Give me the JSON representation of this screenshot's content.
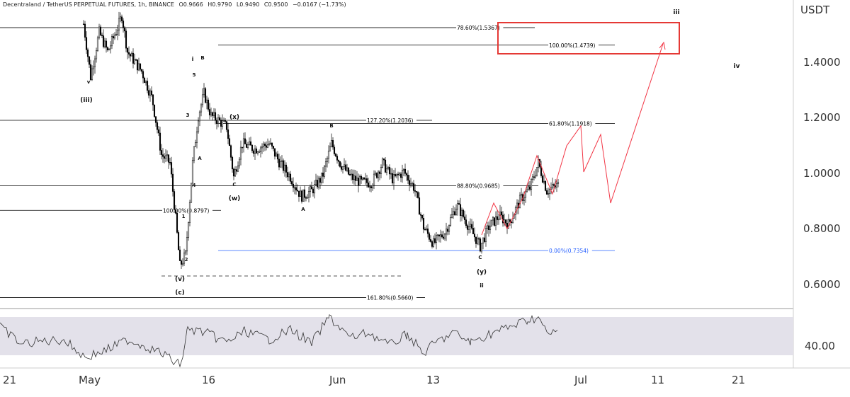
{
  "header": {
    "symbol": "Decentraland / TetherUS PERPETUAL FUTURES, 1h, BINANCE",
    "open": "O0.9666",
    "high": "H0.9790",
    "low": "L0.9490",
    "close": "C0.9500",
    "change": "−0.0167 (−1.73%)"
  },
  "price_axis": {
    "currency": "USDT",
    "labels": [
      "1.4000",
      "1.2000",
      "1.0000",
      "0.8000",
      "0.6000"
    ]
  },
  "indicator_axis": {
    "labels": [
      "40.00"
    ]
  },
  "time_axis": {
    "labels": [
      "21",
      "May",
      "16",
      "Jun",
      "13",
      "Jul",
      "11",
      "21"
    ]
  },
  "fib_levels": [
    {
      "label": "78.60%(1.5367)",
      "color": "#000000"
    },
    {
      "label": "100.00%(1.4739)",
      "color": "#000000"
    },
    {
      "label": "127.20%(1.2036)",
      "color": "#000000"
    },
    {
      "label": "61.80%(1.1918)",
      "color": "#000000"
    },
    {
      "label": "88.80%(0.9685)",
      "color": "#000000"
    },
    {
      "label": "100.00%(0.8797)",
      "color": "#000000"
    },
    {
      "label": "0.00%(0.7354)",
      "color": "#2962ff"
    },
    {
      "label": "161.80%(0.5660)",
      "color": "#000000"
    }
  ],
  "wave_labels": [
    "(iii)",
    "v",
    "i",
    "B",
    "5",
    "3",
    "A",
    "4",
    "(x)",
    "C",
    "(w)",
    "B",
    "A",
    "1",
    "2",
    "(v)",
    "(c)",
    "C",
    "(y)",
    "ii",
    "iii",
    "iv"
  ],
  "colors": {
    "candles": "#000000",
    "projection": "#f23645",
    "target_box": "#e53935",
    "fib_line": "#000000",
    "fib_zero": "#2962ff",
    "indicator_band": "#e3e1ea",
    "axis_text": "#333333"
  },
  "chart_data": {
    "type": "candlestick",
    "title": "Decentraland / TetherUS PERPETUAL FUTURES, 1h, BINANCE",
    "x": [
      "21",
      "May",
      "16",
      "Jun",
      "13",
      "Jul",
      "11",
      "21"
    ],
    "ylabel": "USDT",
    "ylim": [
      0.54,
      1.62
    ],
    "y_ticks": [
      0.6,
      0.8,
      1.0,
      1.2,
      1.4
    ],
    "close_series_approx": [
      1.55,
      1.52,
      1.45,
      1.28,
      1.0,
      0.66,
      1.25,
      1.21,
      1.12,
      1.05,
      0.92,
      1.12,
      0.98,
      1.05,
      0.98,
      0.8,
      0.9,
      0.74,
      0.82,
      0.9,
      1.05,
      0.96
    ],
    "projection_path": [
      1.0,
      1.16,
      1.0,
      1.13,
      0.89,
      1.47
    ],
    "target_zone": [
      1.43,
      1.55
    ],
    "indicator_axis_value": 40.0
  }
}
